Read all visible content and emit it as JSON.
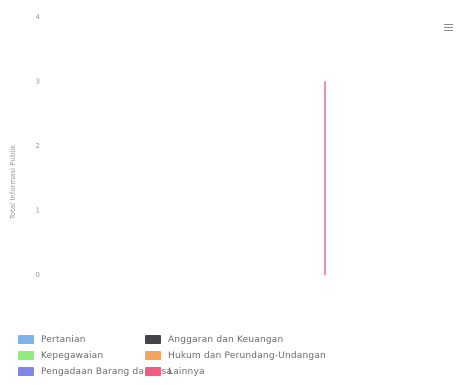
{
  "menu": {
    "icon": "hamburger-menu-icon"
  },
  "chart_data": {
    "type": "bar",
    "ylabel": "Total Informasi Publik",
    "ylim": [
      0,
      4
    ],
    "yticks": [
      "0",
      "1",
      "2",
      "3",
      "4"
    ],
    "categories": [
      "",
      "",
      "",
      "",
      "",
      "",
      "",
      "",
      "",
      "",
      "",
      "",
      "",
      ""
    ],
    "grid": false,
    "legend_position": "bottom",
    "series": [
      {
        "name": "Pertanian",
        "color": "#7cb5ec",
        "values": [
          0,
          0,
          0,
          0,
          0,
          0,
          0,
          0,
          0,
          0,
          0,
          0,
          0,
          0
        ]
      },
      {
        "name": "Anggaran dan Keuangan",
        "color": "#434348",
        "values": [
          0,
          0,
          0,
          0,
          0,
          0,
          0,
          0,
          0,
          0,
          0,
          0,
          0,
          0
        ]
      },
      {
        "name": "Kepegawaian",
        "color": "#90ed7d",
        "values": [
          0,
          0,
          0,
          0,
          0,
          0,
          0,
          0,
          0,
          0,
          0,
          0,
          0,
          0
        ]
      },
      {
        "name": "Hukum dan Perundang-Undangan",
        "color": "#f7a35c",
        "values": [
          0,
          0,
          0,
          0,
          0,
          0,
          0,
          0,
          0,
          0,
          0,
          0,
          0,
          0
        ]
      },
      {
        "name": "Pengadaan Barang dan Jasa",
        "color": "#8085e9",
        "values": [
          0,
          0,
          0,
          0,
          0,
          0,
          0,
          0,
          0,
          0,
          0,
          0,
          0,
          0
        ]
      },
      {
        "name": "Lainnya",
        "color": "#f15c80",
        "values": [
          0,
          0,
          0,
          0,
          0,
          0,
          0,
          0,
          0,
          3,
          0,
          0,
          0,
          0
        ]
      }
    ]
  }
}
